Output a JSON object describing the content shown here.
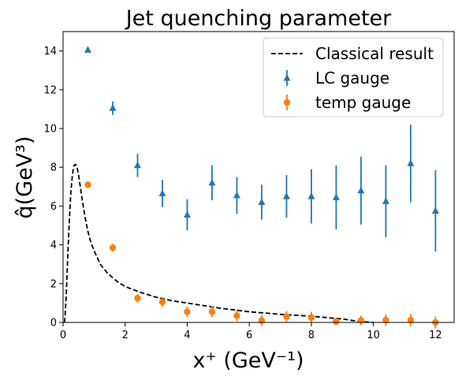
{
  "chart_data": {
    "type": "scatter",
    "title": "Jet quenching parameter",
    "xlabel": "x⁺  (GeV⁻¹)",
    "ylabel": "q̂(GeV³)",
    "xlim": [
      0,
      12.6
    ],
    "ylim": [
      0,
      15
    ],
    "xticks": [
      0,
      2,
      4,
      6,
      8,
      10,
      12
    ],
    "yticks": [
      0,
      2,
      4,
      6,
      8,
      10,
      12,
      14
    ],
    "grid": false,
    "legend_position": "top-right",
    "series": [
      {
        "name": "Classical result",
        "kind": "line",
        "style": "dashed",
        "color": "#000000",
        "x": [
          0.05,
          0.1,
          0.15,
          0.2,
          0.25,
          0.3,
          0.35,
          0.4,
          0.45,
          0.5,
          0.6,
          0.7,
          0.8,
          0.9,
          1.0,
          1.2,
          1.4,
          1.6,
          1.8,
          2.0,
          2.5,
          3.0,
          3.5,
          4.0,
          5.0,
          6.0,
          7.0,
          8.0,
          9.0,
          9.5,
          10.0
        ],
        "y": [
          0.0,
          1.3,
          3.4,
          5.2,
          6.7,
          7.6,
          8.1,
          8.15,
          8.0,
          7.6,
          6.5,
          5.5,
          4.7,
          4.1,
          3.7,
          3.0,
          2.6,
          2.3,
          2.05,
          1.85,
          1.55,
          1.3,
          1.12,
          1.0,
          0.75,
          0.55,
          0.42,
          0.32,
          0.18,
          0.06,
          0.0
        ]
      },
      {
        "name": "LC gauge",
        "kind": "errorbar",
        "marker": "triangle",
        "color": "#1f77b4",
        "x": [
          0.8,
          1.6,
          2.4,
          3.2,
          4.0,
          4.8,
          5.6,
          6.4,
          7.2,
          8.0,
          8.8,
          9.6,
          10.4,
          11.2,
          12.0
        ],
        "y": [
          14.05,
          11.05,
          8.1,
          6.65,
          5.55,
          7.2,
          6.55,
          6.2,
          6.5,
          6.5,
          6.45,
          6.8,
          6.25,
          8.2,
          5.75
        ],
        "yerr": [
          0.1,
          0.35,
          0.6,
          0.7,
          0.8,
          0.9,
          0.95,
          0.9,
          1.1,
          1.4,
          1.65,
          1.75,
          1.85,
          2.0,
          2.1
        ]
      },
      {
        "name": "temp gauge",
        "kind": "errorbar",
        "marker": "circle",
        "color": "#ff7f0e",
        "x": [
          0.8,
          1.6,
          2.4,
          3.2,
          4.0,
          4.8,
          5.6,
          6.4,
          7.2,
          8.0,
          8.8,
          9.6,
          10.4,
          11.2,
          12.0
        ],
        "y": [
          7.1,
          3.85,
          1.25,
          1.05,
          0.55,
          0.55,
          0.35,
          0.1,
          0.3,
          0.25,
          0.05,
          0.1,
          0.12,
          0.12,
          0.0
        ],
        "yerr": [
          0.15,
          0.2,
          0.22,
          0.25,
          0.28,
          0.28,
          0.3,
          0.28,
          0.28,
          0.3,
          0.2,
          0.25,
          0.3,
          0.32,
          0.3
        ]
      }
    ]
  }
}
